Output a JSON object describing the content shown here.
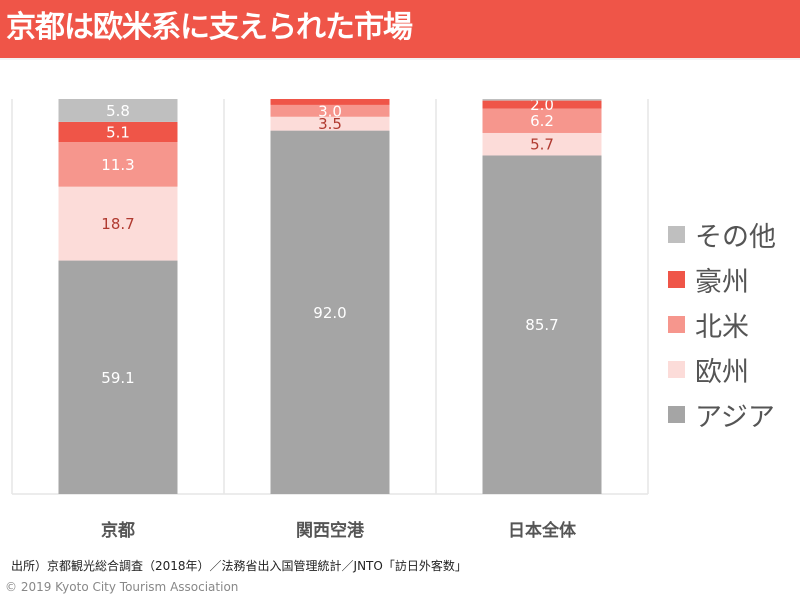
{
  "header": {
    "title": "京都は欧米系に支えられた市場"
  },
  "chart_data": {
    "type": "bar",
    "stacked": true,
    "percent": true,
    "categories": [
      "京都",
      "関西空港",
      "日本全体"
    ],
    "series": [
      {
        "name": "アジア",
        "color": "#a5a5a5",
        "label_color": "#ffffff",
        "values": [
          59.1,
          92.0,
          85.7
        ],
        "labels": [
          "59.1",
          "92.0",
          "85.7"
        ]
      },
      {
        "name": "欧州",
        "color": "#fcdcd9",
        "label_color": "#b03a30",
        "values": [
          18.7,
          3.5,
          5.7
        ],
        "labels": [
          "18.7",
          "3.5",
          "5.7"
        ]
      },
      {
        "name": "北米",
        "color": "#f6968d",
        "label_color": "#ffffff",
        "values": [
          11.3,
          3.0,
          6.2
        ],
        "labels": [
          "11.3",
          "3.0",
          "6.2"
        ]
      },
      {
        "name": "豪州",
        "color": "#ef5548",
        "label_color": "#ffffff",
        "values": [
          5.1,
          1.5,
          2.0
        ],
        "labels": [
          "5.1",
          "",
          "2.0"
        ]
      },
      {
        "name": "その他",
        "color": "#bfbfbf",
        "label_color": "#ffffff",
        "values": [
          5.8,
          0.0,
          0.4
        ],
        "labels": [
          "5.8",
          "",
          ""
        ]
      }
    ],
    "ylim": [
      0,
      100
    ],
    "legend_position": "right",
    "legend_order": [
      "その他",
      "豪州",
      "北米",
      "欧州",
      "アジア"
    ],
    "grid": false
  },
  "footer": {
    "source": "出所）京都観光総合調査（2018年）／法務省出入国管理統計／JNTO「訪日外客数」",
    "copyright": "© 2019 Kyoto City Tourism Association"
  }
}
